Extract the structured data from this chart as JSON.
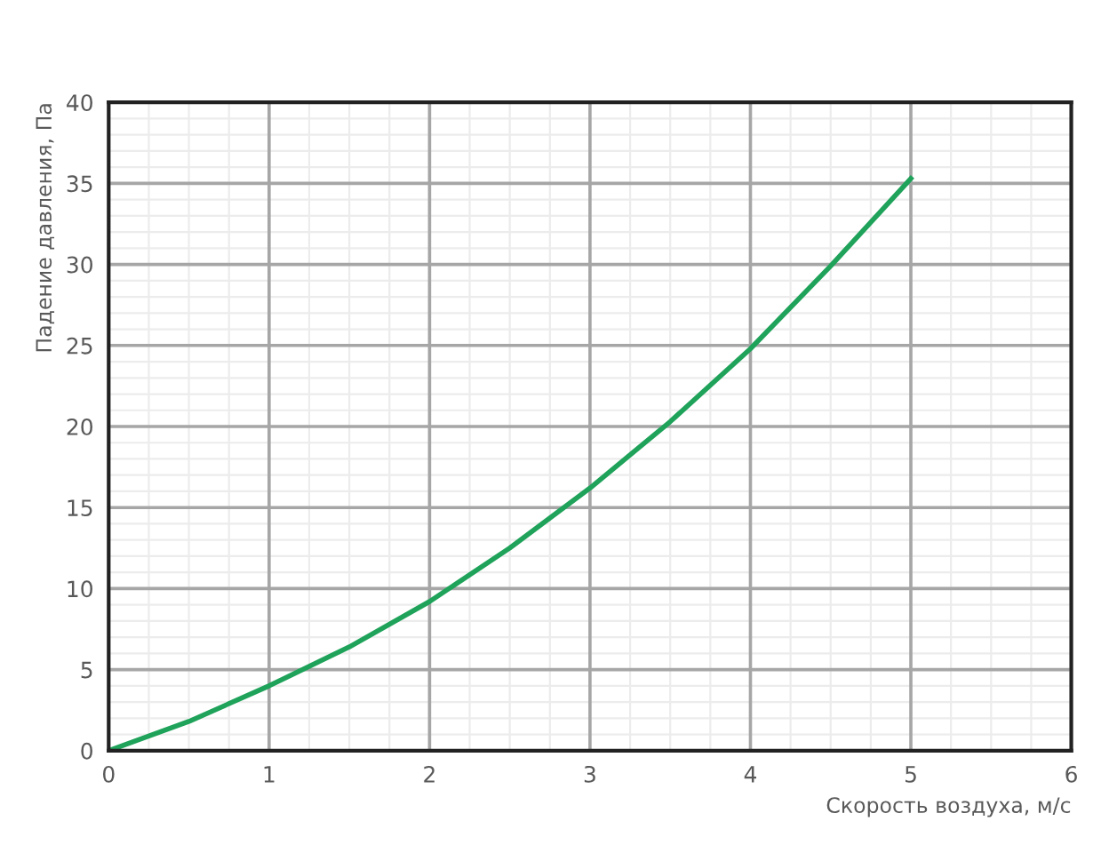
{
  "chart_data": {
    "type": "line",
    "xlabel": "Скорость воздуха, м/с",
    "ylabel": "Падение давления, Па",
    "x": [
      0,
      0.5,
      1,
      1.5,
      2,
      2.5,
      3,
      3.5,
      4,
      4.5,
      5
    ],
    "series": [
      {
        "color": "#1fa25a",
        "values": [
          0,
          1.8,
          4.0,
          6.4,
          9.2,
          12.5,
          16.2,
          20.3,
          24.8,
          29.9,
          35.3
        ]
      }
    ],
    "xlim": [
      0,
      6
    ],
    "xticks": [
      0,
      1,
      2,
      3,
      4,
      5,
      6
    ],
    "ylim": [
      0,
      40
    ],
    "yticks": [
      0,
      5,
      10,
      15,
      20,
      25,
      30,
      35,
      40
    ],
    "grid": true,
    "marker": "none",
    "line_style": "solid"
  }
}
